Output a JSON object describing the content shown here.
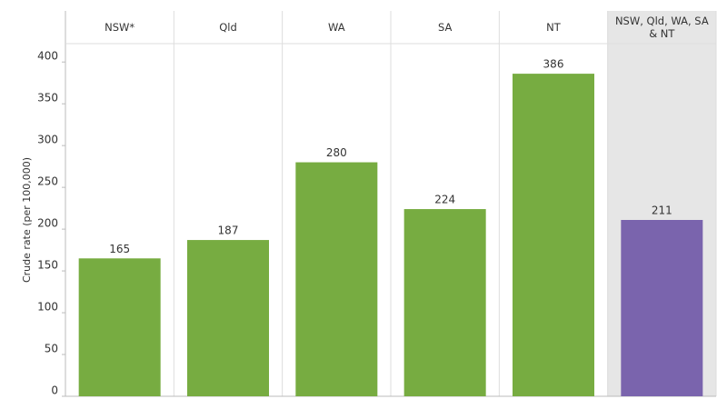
{
  "chart_data": {
    "type": "bar",
    "y_label": "Crude rate (per 100,000)",
    "categories": [
      "NSW*",
      "Qld",
      "WA",
      "SA",
      "NT",
      "NSW, Qld, WA, SA & NT"
    ],
    "values": [
      165,
      187,
      280,
      224,
      386,
      211
    ],
    "colors": [
      "#77ac41",
      "#77ac41",
      "#77ac41",
      "#77ac41",
      "#77ac41",
      "#7a64ad"
    ],
    "ylim": [
      0,
      422
    ],
    "yticks": [
      0,
      50,
      100,
      150,
      200,
      250,
      300,
      350,
      400
    ]
  }
}
